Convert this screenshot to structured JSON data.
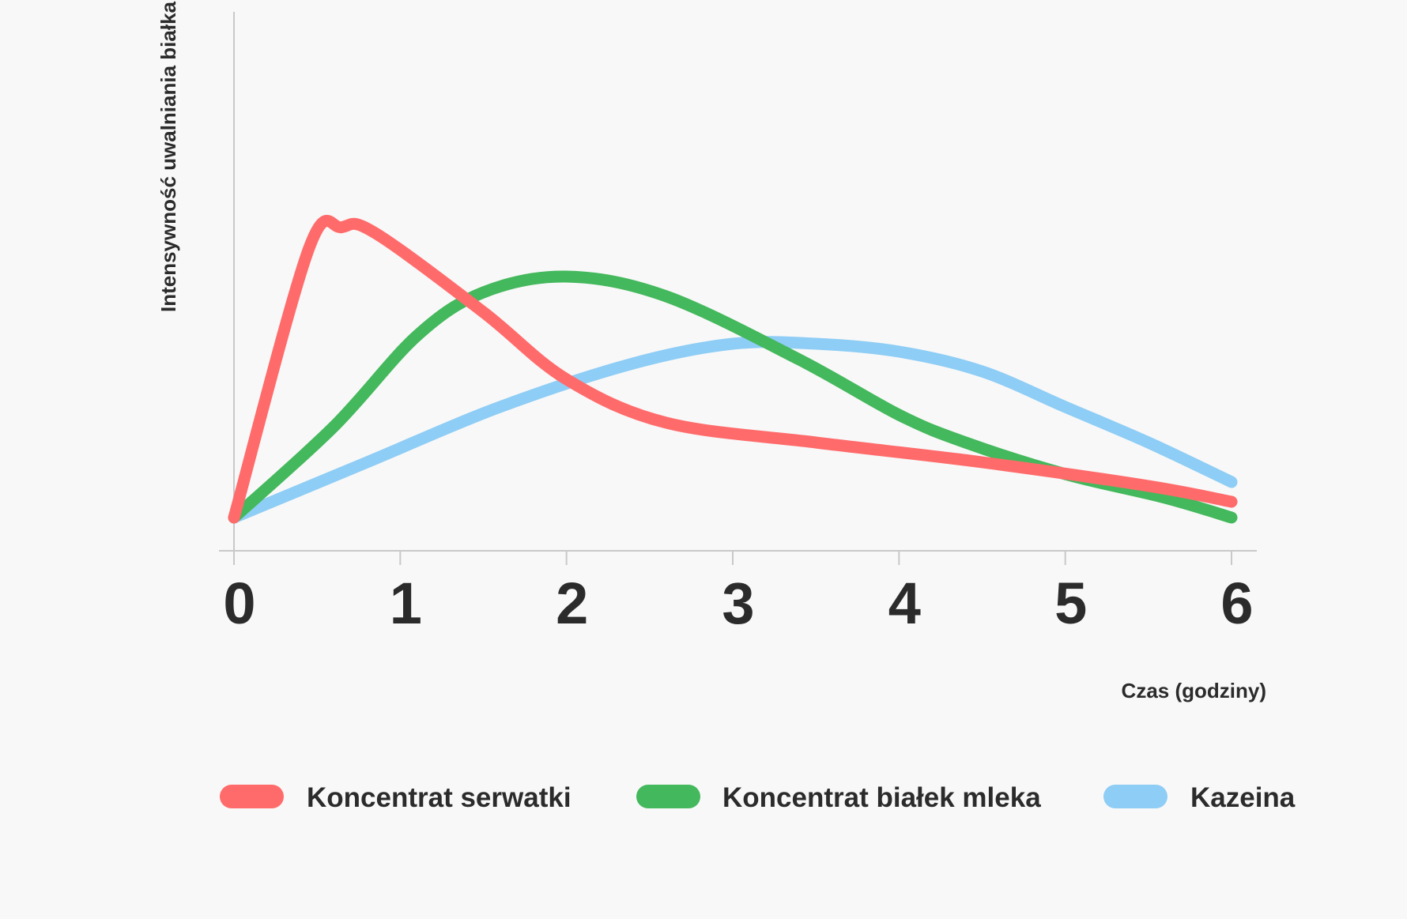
{
  "chart_data": {
    "type": "line",
    "title": "",
    "xlabel": "Czas (godziny)",
    "ylabel": "Intensywność uwalniania białka",
    "x": [
      0,
      1,
      2,
      3,
      4,
      5,
      6
    ],
    "x_ticks": [
      "0",
      "1",
      "2",
      "3",
      "4",
      "5",
      "6"
    ],
    "xlim": [
      0,
      6
    ],
    "ylim": [
      0,
      10
    ],
    "y_ticks_shown": false,
    "grid": false,
    "legend_position": "bottom",
    "series": [
      {
        "name": "Koncentrat serwatki",
        "color": "#ff6b6b",
        "points": [
          [
            0,
            0
          ],
          [
            0.45,
            6.8
          ],
          [
            0.65,
            7.35
          ],
          [
            0.85,
            7.2
          ],
          [
            1.5,
            5.2
          ],
          [
            2.0,
            3.5
          ],
          [
            2.6,
            2.4
          ],
          [
            3.5,
            1.9
          ],
          [
            4.5,
            1.4
          ],
          [
            5.5,
            0.8
          ],
          [
            6,
            0.4
          ]
        ]
      },
      {
        "name": "Koncentrat białek mleka",
        "color": "#44b85c",
        "points": [
          [
            0,
            0
          ],
          [
            0.6,
            2.3
          ],
          [
            1.1,
            4.6
          ],
          [
            1.5,
            5.7
          ],
          [
            2.0,
            6.1
          ],
          [
            2.6,
            5.6
          ],
          [
            3.4,
            4.0
          ],
          [
            4.0,
            2.6
          ],
          [
            4.4,
            1.9
          ],
          [
            5.0,
            1.1
          ],
          [
            5.6,
            0.5
          ],
          [
            6,
            0
          ]
        ]
      },
      {
        "name": "Kazeina",
        "color": "#8ecdf5",
        "points": [
          [
            0,
            0
          ],
          [
            0.8,
            1.4
          ],
          [
            1.6,
            2.8
          ],
          [
            2.4,
            3.9
          ],
          [
            3.0,
            4.4
          ],
          [
            3.5,
            4.4
          ],
          [
            4.0,
            4.2
          ],
          [
            4.5,
            3.7
          ],
          [
            5.0,
            2.8
          ],
          [
            5.5,
            1.9
          ],
          [
            6,
            0.9
          ]
        ]
      }
    ]
  }
}
